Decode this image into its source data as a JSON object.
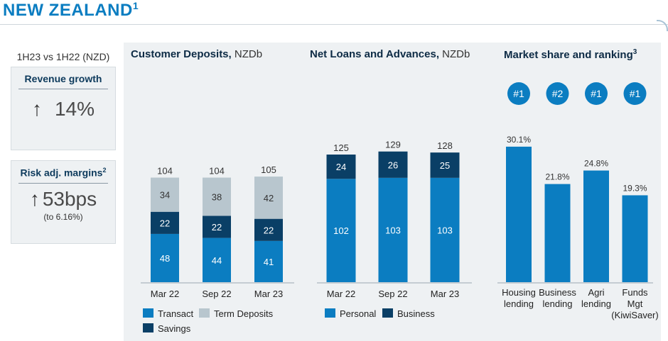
{
  "page": {
    "title": "NEW ZEALAND",
    "title_note": "1"
  },
  "left": {
    "period": "1H23 vs 1H22 (NZD)",
    "revenue": {
      "title": "Revenue growth",
      "arrow": "↑",
      "value": "14%"
    },
    "margin": {
      "title": "Risk adj. margins",
      "title_note": "2",
      "arrow": "↑",
      "value": "53bps",
      "note": "(to 6.16%)"
    }
  },
  "colors": {
    "primary_blue": "#0b7dc1",
    "dark_navy": "#0a3f66",
    "light_grey": "#b8c6ce",
    "panel_bg": "#eef1f3"
  },
  "chart_data": [
    {
      "type": "bar",
      "stacked": true,
      "title": "Customer Deposits,",
      "unit": "NZDb",
      "categories": [
        "Mar 22",
        "Sep 22",
        "Mar 23"
      ],
      "series": [
        {
          "name": "Transact",
          "values": [
            48,
            44,
            41
          ],
          "color": "#0b7dc1"
        },
        {
          "name": "Savings",
          "values": [
            22,
            22,
            22
          ],
          "color": "#0a3f66"
        },
        {
          "name": "Term Deposits",
          "values": [
            34,
            38,
            42
          ],
          "color": "#b8c6ce"
        }
      ],
      "totals": [
        104,
        104,
        105
      ],
      "legend": [
        "Transact",
        "Term Deposits",
        "Savings"
      ],
      "ylim": [
        0,
        110
      ]
    },
    {
      "type": "bar",
      "stacked": true,
      "title": "Net Loans and Advances,",
      "unit": "NZDb",
      "categories": [
        "Mar 22",
        "Sep 22",
        "Mar 23"
      ],
      "series": [
        {
          "name": "Personal",
          "values": [
            102,
            103,
            103
          ],
          "color": "#0b7dc1"
        },
        {
          "name": "Business",
          "values": [
            24,
            26,
            25
          ],
          "color": "#0a3f66"
        }
      ],
      "totals": [
        125,
        129,
        128
      ],
      "legend": [
        "Personal",
        "Business"
      ],
      "ylim": [
        0,
        133
      ]
    },
    {
      "type": "bar",
      "title": "Market share and ranking",
      "title_note": "3",
      "categories": [
        [
          "Housing",
          "lending"
        ],
        [
          "Business",
          "lending"
        ],
        [
          "Agri",
          "lending"
        ],
        [
          "Funds",
          "Mgt",
          "(KiwiSaver)"
        ]
      ],
      "ranks": [
        "#1",
        "#2",
        "#1",
        "#1"
      ],
      "values": [
        30.1,
        21.8,
        24.8,
        19.3
      ],
      "value_labels": [
        "30.1%",
        "21.8%",
        "24.8%",
        "19.3%"
      ],
      "color": "#0b7dc1",
      "ylim": [
        0,
        31.5
      ]
    }
  ]
}
